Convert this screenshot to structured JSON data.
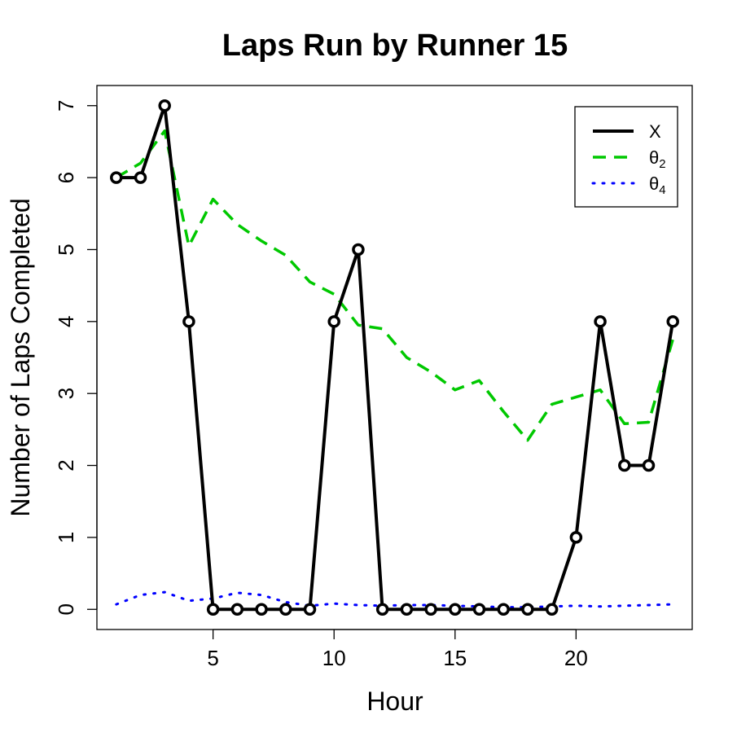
{
  "chart_data": {
    "type": "line",
    "title": "Laps Run by Runner 15",
    "xlabel": "Hour",
    "ylabel": "Number of Laps Completed",
    "xlim": [
      0.2,
      24.8
    ],
    "ylim": [
      -0.28,
      7.28
    ],
    "x_ticks": [
      5,
      10,
      15,
      20
    ],
    "y_ticks": [
      0,
      1,
      2,
      3,
      4,
      5,
      6,
      7
    ],
    "grid": false,
    "legend_position": "top-right",
    "x": [
      1,
      2,
      3,
      4,
      5,
      6,
      7,
      8,
      9,
      10,
      11,
      12,
      13,
      14,
      15,
      16,
      17,
      18,
      19,
      20,
      21,
      22,
      23,
      24
    ],
    "series": [
      {
        "name": "X",
        "legend_symbol": "X",
        "legend_sub": "",
        "color": "#000000",
        "style": "solid-with-points",
        "values": [
          6,
          6,
          7,
          4,
          0,
          0,
          0,
          0,
          0,
          4,
          5,
          0,
          0,
          0,
          0,
          0,
          0,
          0,
          0,
          1,
          4,
          2,
          2,
          4
        ]
      },
      {
        "name": "θ2",
        "legend_symbol": "θ",
        "legend_sub": "2",
        "color": "#00c800",
        "style": "dashed",
        "values": [
          6.0,
          6.2,
          6.65,
          5.05,
          5.7,
          5.35,
          5.12,
          4.92,
          4.55,
          4.38,
          3.95,
          3.9,
          3.5,
          3.3,
          3.05,
          3.18,
          2.75,
          2.35,
          2.85,
          2.95,
          3.05,
          2.58,
          2.6,
          3.75
        ]
      },
      {
        "name": "θ4",
        "legend_symbol": "θ",
        "legend_sub": "4",
        "color": "#0000ff",
        "style": "dotted",
        "values": [
          0.07,
          0.2,
          0.24,
          0.12,
          0.15,
          0.23,
          0.2,
          0.1,
          0.05,
          0.08,
          0.06,
          0.05,
          0.06,
          0.06,
          0.05,
          0.04,
          0.03,
          0.03,
          0.04,
          0.05,
          0.04,
          0.05,
          0.06,
          0.07
        ]
      }
    ]
  }
}
